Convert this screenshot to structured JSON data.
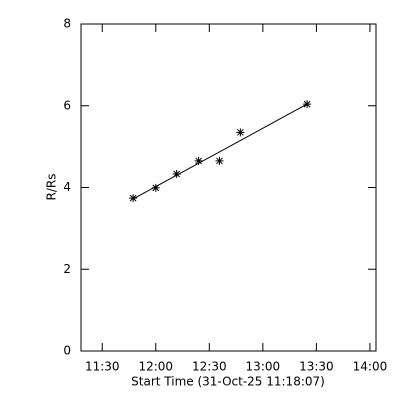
{
  "chart_data": {
    "type": "scatter",
    "x_label": "Start Time (31-Oct-25 11:18:07)",
    "y_label": "R/Rs",
    "x": [
      707.3,
      720,
      731.7,
      744,
      755.7,
      767.4,
      804.8
    ],
    "values": [
      3.74,
      3.99,
      4.33,
      4.65,
      4.65,
      5.35,
      6.04
    ],
    "fit_line": {
      "x": [
        707.3,
        804.8
      ],
      "values": [
        3.72,
        6.04
      ]
    },
    "color": "#000000",
    "xlim": [
      678.1,
      843.4
    ],
    "xticks": [
      {
        "value": 690,
        "label": "11:30"
      },
      {
        "value": 720,
        "label": "12:00"
      },
      {
        "value": 750,
        "label": "12:30"
      },
      {
        "value": 780,
        "label": "13:00"
      },
      {
        "value": 810,
        "label": "13:30"
      },
      {
        "value": 840,
        "label": "14:00"
      }
    ],
    "ylim": [
      0,
      8
    ],
    "yticks": [
      0,
      2,
      4,
      6,
      8
    ]
  }
}
